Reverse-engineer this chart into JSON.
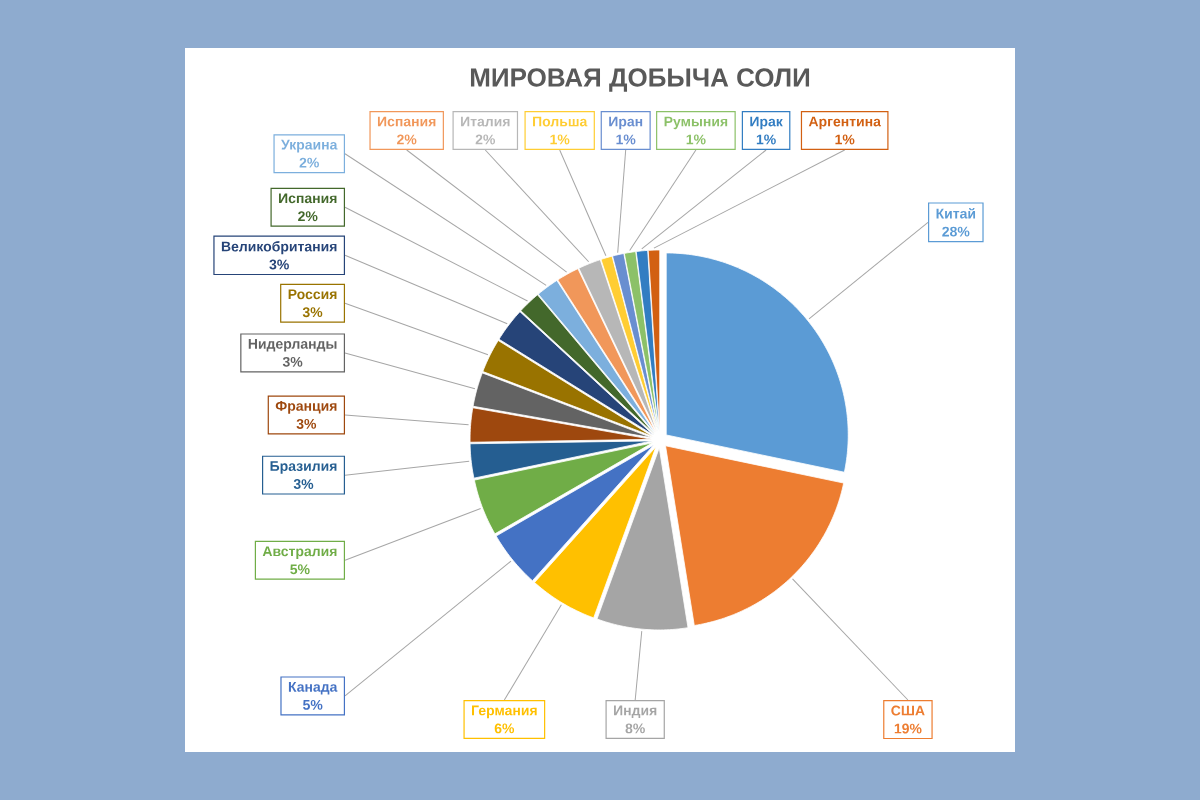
{
  "chart_data": {
    "type": "pie",
    "title": "МИРОВАЯ ДОБЫЧА СОЛИ",
    "categories": [
      "Китай",
      "США",
      "Индия",
      "Германия",
      "Канада",
      "Австралия",
      "Бразилия",
      "Франция",
      "Нидерланды",
      "Россия",
      "Великобритания",
      "Испания",
      "Украина",
      "Испания",
      "Италия",
      "Польша",
      "Иран",
      "Румыния",
      "Ирак",
      "Аргентина"
    ],
    "values": [
      28,
      19,
      8,
      6,
      5,
      5,
      3,
      3,
      3,
      3,
      3,
      2,
      2,
      2,
      2,
      1,
      1,
      1,
      1,
      1
    ],
    "value_labels": [
      "28%",
      "19%",
      "8%",
      "6%",
      "5%",
      "5%",
      "3%",
      "3%",
      "3%",
      "3%",
      "3%",
      "2%",
      "2%",
      "2%",
      "2%",
      "1%",
      "1%",
      "1%",
      "1%",
      "1%"
    ],
    "colors": [
      "#5b9bd5",
      "#ed7d31",
      "#a5a5a5",
      "#ffc000",
      "#4472c4",
      "#70ad47",
      "#255e91",
      "#9e480e",
      "#636363",
      "#997300",
      "#264478",
      "#43682b",
      "#7cafdd",
      "#f1975a",
      "#b7b7b7",
      "#ffcd33",
      "#698ed0",
      "#8cc168",
      "#327dc2",
      "#d26012"
    ]
  }
}
